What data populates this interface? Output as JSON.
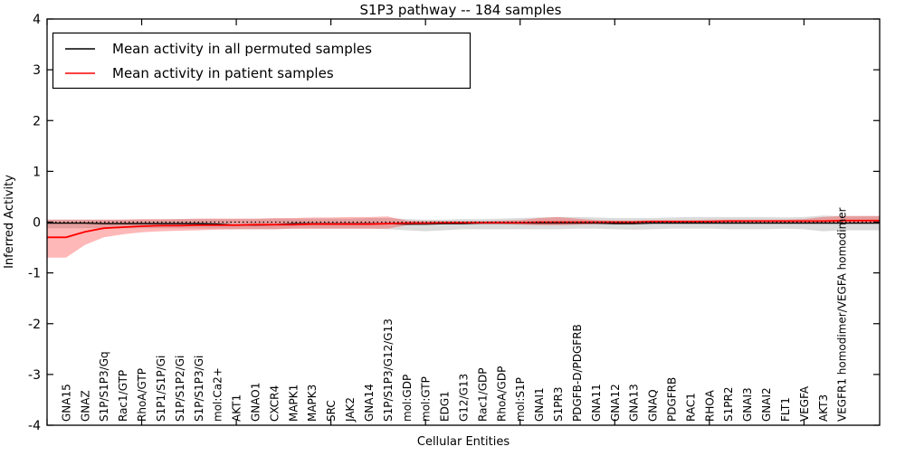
{
  "chart_data": {
    "type": "line",
    "title": "S1P3 pathway -- 184 samples",
    "xlabel": "Cellular Entities",
    "ylabel": "Inferred Activity",
    "ylim": [
      -4,
      4
    ],
    "yticks": [
      -4,
      -3,
      -2,
      -1,
      0,
      1,
      2,
      3,
      4
    ],
    "grid": false,
    "legend_position": "upper left",
    "zero_line": {
      "y": 0,
      "style": "dotted",
      "color": "#000000"
    },
    "categories": [
      "GNA15",
      "GNAZ",
      "S1P/S1P3/Gq",
      "Rac1/GTP",
      "RhoA/GTP",
      "S1P1/S1P/Gi",
      "S1P/S1P2/Gi",
      "S1P/S1P3/Gi",
      "mol:Ca2+",
      "AKT1",
      "GNAO1",
      "CXCR4",
      "MAPK1",
      "MAPK3",
      "SRC",
      "JAK2",
      "GNA14",
      "S1P/S1P3/G12/G13",
      "mol:GDP",
      "mol:GTP",
      "EDG1",
      "G12/G13",
      "Rac1/GDP",
      "RhoA/GDP",
      "mol:S1P",
      "GNAI1",
      "S1PR3",
      "PDGFB-D/PDGFRB",
      "GNA11",
      "GNA12",
      "GNA13",
      "GNAQ",
      "PDGFRB",
      "RAC1",
      "RHOA",
      "S1PR2",
      "GNAI3",
      "GNAI2",
      "FLT1",
      "VEGFA",
      "AKT3",
      "VEGFR1 homodimer/VEGFA homodimer"
    ],
    "series": [
      {
        "name": "Mean activity in all permuted samples",
        "color": "#000000",
        "band_color": "#999999",
        "band_opacity": 0.35,
        "values": [
          -0.02,
          -0.02,
          -0.03,
          -0.03,
          -0.03,
          -0.03,
          -0.03,
          -0.03,
          -0.04,
          -0.06,
          -0.06,
          -0.05,
          -0.03,
          -0.03,
          -0.03,
          -0.03,
          -0.03,
          -0.03,
          -0.04,
          -0.04,
          -0.03,
          -0.03,
          -0.02,
          -0.02,
          -0.02,
          -0.02,
          -0.02,
          -0.02,
          -0.02,
          -0.03,
          -0.03,
          -0.02,
          -0.02,
          -0.02,
          -0.02,
          -0.02,
          -0.02,
          -0.02,
          -0.02,
          -0.02,
          -0.02,
          -0.02
        ],
        "band_upper": [
          0.05,
          0.05,
          0.05,
          0.05,
          0.05,
          0.05,
          0.06,
          0.06,
          0.06,
          0.06,
          0.06,
          0.07,
          0.07,
          0.07,
          0.07,
          0.07,
          0.08,
          0.08,
          0.06,
          0.05,
          0.05,
          0.06,
          0.06,
          0.07,
          0.08,
          0.09,
          0.1,
          0.1,
          0.09,
          0.08,
          0.08,
          0.08,
          0.09,
          0.1,
          0.1,
          0.1,
          0.1,
          0.1,
          0.09,
          0.1,
          0.13,
          0.12
        ],
        "band_lower": [
          -0.12,
          -0.12,
          -0.12,
          -0.12,
          -0.12,
          -0.12,
          -0.12,
          -0.13,
          -0.13,
          -0.14,
          -0.14,
          -0.14,
          -0.13,
          -0.13,
          -0.13,
          -0.13,
          -0.13,
          -0.14,
          -0.16,
          -0.18,
          -0.16,
          -0.14,
          -0.14,
          -0.14,
          -0.14,
          -0.14,
          -0.14,
          -0.13,
          -0.13,
          -0.14,
          -0.15,
          -0.14,
          -0.13,
          -0.13,
          -0.13,
          -0.14,
          -0.14,
          -0.14,
          -0.13,
          -0.14,
          -0.18,
          -0.16
        ]
      },
      {
        "name": "Mean activity in patient samples",
        "color": "#ff0000",
        "band_color": "#ff0000",
        "band_opacity": 0.28,
        "values": [
          -0.3,
          -0.19,
          -0.12,
          -0.1,
          -0.08,
          -0.07,
          -0.07,
          -0.06,
          -0.06,
          -0.06,
          -0.05,
          -0.05,
          -0.05,
          -0.04,
          -0.04,
          -0.04,
          -0.04,
          -0.03,
          -0.02,
          -0.02,
          -0.01,
          -0.01,
          -0.01,
          -0.01,
          -0.01,
          0.0,
          0.0,
          0.0,
          0.0,
          0.0,
          0.0,
          0.01,
          0.01,
          0.01,
          0.01,
          0.02,
          0.02,
          0.02,
          0.02,
          0.02,
          0.02,
          0.03
        ],
        "band_upper": [
          0.05,
          0.05,
          0.05,
          0.05,
          0.06,
          0.06,
          0.06,
          0.07,
          0.07,
          0.07,
          0.07,
          0.08,
          0.08,
          0.09,
          0.09,
          0.1,
          0.1,
          0.11,
          0.03,
          0.02,
          0.02,
          0.02,
          0.02,
          0.03,
          0.04,
          0.08,
          0.1,
          0.07,
          0.04,
          0.03,
          0.03,
          0.04,
          0.04,
          0.04,
          0.05,
          0.05,
          0.05,
          0.05,
          0.05,
          0.06,
          0.1,
          0.12
        ],
        "band_lower": [
          -0.7,
          -0.45,
          -0.3,
          -0.24,
          -0.2,
          -0.18,
          -0.17,
          -0.16,
          -0.15,
          -0.14,
          -0.14,
          -0.14,
          -0.13,
          -0.13,
          -0.13,
          -0.13,
          -0.13,
          -0.13,
          -0.06,
          -0.04,
          -0.03,
          -0.03,
          -0.04,
          -0.04,
          -0.05,
          -0.06,
          -0.06,
          -0.05,
          -0.04,
          -0.03,
          -0.02,
          -0.02,
          -0.02,
          -0.02,
          -0.02,
          -0.02,
          -0.02,
          -0.02,
          -0.02,
          -0.01,
          -0.02,
          -0.03
        ]
      }
    ]
  }
}
